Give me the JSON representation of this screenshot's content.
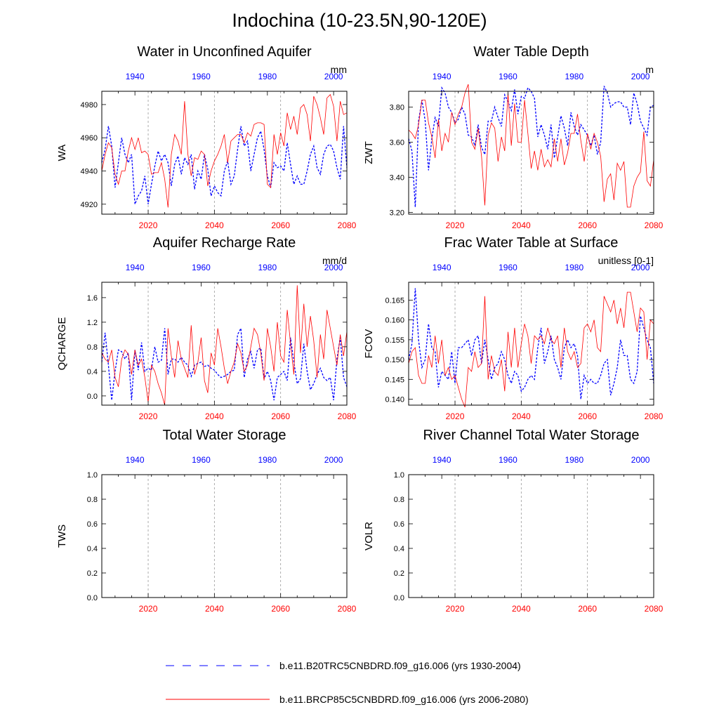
{
  "title": "Indochina (10-23.5N,90-120E)",
  "colors": {
    "historical": "#0000ff",
    "future": "#ff0000",
    "axis": "#000000",
    "grid": "#999999"
  },
  "legend": [
    {
      "label": "b.e11.B20TRC5CNBDRD.f09_g16.006 (yrs 1930-2004)",
      "color": "#0000ff",
      "style": "dashed"
    },
    {
      "label": "b.e11.BRCP85C5CNBDRD.f09_g16.006 (yrs 2006-2080)",
      "color": "#ff0000",
      "style": "solid"
    }
  ],
  "chart_data": [
    {
      "type": "line",
      "title": "Water in Unconfined Aquifer",
      "ylabel": "WA",
      "units": "mm",
      "ylim": [
        4914,
        4988
      ],
      "yticks": [
        4920,
        4940,
        4960,
        4980
      ],
      "bottom_xlim": [
        2006,
        2080
      ],
      "bottom_xticks": [
        2020,
        2040,
        2060,
        2080
      ],
      "top_xlim": [
        1930,
        2004
      ],
      "top_xticks": [
        1940,
        1960,
        1980,
        2000
      ],
      "grid_x": [
        2020,
        2040,
        2060
      ],
      "series": [
        {
          "name": "b.e11.B20TRC5CNBDRD.f09_g16.006 (yrs 1930-2004)",
          "axis": "top",
          "x_start": 1930,
          "values": [
            4945,
            4953,
            4967,
            4955,
            4930,
            4945,
            4960,
            4950,
            4945,
            4950,
            4920,
            4925,
            4928,
            4937,
            4920,
            4932,
            4943,
            4952,
            4946,
            4950,
            4945,
            4931,
            4944,
            4949,
            4938,
            4948,
            4944,
            4950,
            4929,
            4940,
            4935,
            4950,
            4941,
            4925,
            4931,
            4927,
            4925,
            4940,
            4946,
            4932,
            4937,
            4953,
            4967,
            4955,
            4958,
            4940,
            4950,
            4960,
            4964,
            4953,
            4937,
            4930,
            4945,
            4942,
            4943,
            4940,
            4957,
            4944,
            4932,
            4937,
            4932,
            4932,
            4940,
            4950,
            4955,
            4942,
            4938,
            4950,
            4955,
            4956,
            4952,
            4942,
            4935,
            4967,
            4942
          ]
        },
        {
          "name": "b.e11.BRCP85C5CNBDRD.f09_g16.006 (yrs 2006-2080)",
          "axis": "bottom",
          "x_start": 2006,
          "values": [
            4940,
            4950,
            4957,
            4954,
            4938,
            4932,
            4940,
            4940,
            4952,
            4960,
            4953,
            4960,
            4951,
            4952,
            4950,
            4938,
            4939,
            4939,
            4945,
            4935,
            4918,
            4950,
            4962,
            4958,
            4950,
            4982,
            4950,
            4937,
            4948,
            4947,
            4952,
            4950,
            4931,
            4940,
            4946,
            4950,
            4955,
            4962,
            4945,
            4958,
            4960,
            4962,
            4962,
            4957,
            4963,
            4961,
            4968,
            4969,
            4969,
            4968,
            4932,
            4930,
            4962,
            4950,
            4963,
            4955,
            4975,
            4965,
            4973,
            4962,
            4978,
            4980,
            4974,
            4958,
            4985,
            4980,
            4972,
            4962,
            4984,
            4986,
            4979,
            4958,
            4982,
            4974,
            4975
          ]
        }
      ]
    },
    {
      "type": "line",
      "title": "Water Table Depth",
      "ylabel": "ZWT",
      "units": "m",
      "ylim": [
        3.19,
        3.89
      ],
      "yticks": [
        3.2,
        3.4,
        3.6,
        3.8
      ],
      "ytick_labels": [
        "3.20",
        "3.40",
        "3.60",
        "3.80"
      ],
      "bottom_xlim": [
        2006,
        2080
      ],
      "bottom_xticks": [
        2020,
        2040,
        2060,
        2080
      ],
      "top_xlim": [
        1930,
        2004
      ],
      "top_xticks": [
        1940,
        1960,
        1980,
        2000
      ],
      "grid_x": [
        2020,
        2040,
        2060
      ],
      "series": [
        {
          "name": "b.e11.B20TRC5CNBDRD.f09_g16.006 (yrs 1930-2004)",
          "axis": "top",
          "x_start": 1930,
          "values": [
            3.62,
            3.55,
            3.23,
            3.72,
            3.84,
            3.72,
            3.44,
            3.62,
            3.74,
            3.69,
            3.91,
            3.88,
            3.8,
            3.77,
            3.71,
            3.73,
            3.8,
            3.76,
            3.64,
            3.63,
            3.58,
            3.7,
            3.57,
            3.53,
            3.72,
            3.72,
            3.8,
            3.74,
            3.69,
            3.87,
            3.83,
            3.78,
            3.9,
            3.76,
            3.86,
            3.85,
            3.91,
            3.89,
            3.85,
            3.63,
            3.7,
            3.64,
            3.56,
            3.7,
            3.51,
            3.63,
            3.75,
            3.68,
            3.58,
            3.77,
            3.69,
            3.64,
            3.7,
            3.67,
            3.64,
            3.58,
            3.64,
            3.53,
            3.6,
            3.92,
            3.88,
            3.8,
            3.82,
            3.83,
            3.83,
            3.8,
            3.8,
            3.7,
            3.88,
            3.82,
            3.72,
            3.68,
            3.64,
            3.8,
            3.81
          ]
        },
        {
          "name": "b.e11.BRCP85C5CNBDRD.f09_g16.006 (yrs 2006-2080)",
          "axis": "bottom",
          "x_start": 2006,
          "values": [
            3.67,
            3.65,
            3.62,
            3.7,
            3.84,
            3.84,
            3.71,
            3.63,
            3.51,
            3.73,
            3.55,
            3.65,
            3.6,
            3.77,
            3.7,
            3.76,
            3.8,
            3.88,
            3.93,
            3.6,
            3.56,
            3.68,
            3.52,
            3.24,
            3.64,
            3.71,
            3.68,
            3.49,
            3.63,
            3.55,
            3.88,
            3.58,
            3.82,
            3.6,
            3.6,
            3.84,
            3.65,
            3.45,
            3.55,
            3.44,
            3.56,
            3.46,
            3.5,
            3.46,
            3.62,
            3.49,
            3.62,
            3.47,
            3.54,
            3.65,
            3.65,
            3.76,
            3.61,
            3.49,
            3.65,
            3.56,
            3.65,
            3.6,
            3.52,
            3.26,
            3.39,
            3.42,
            3.27,
            3.48,
            3.44,
            3.49,
            3.23,
            3.23,
            3.35,
            3.4,
            3.43,
            3.66,
            3.38,
            3.35,
            3.5
          ]
        }
      ]
    },
    {
      "type": "line",
      "title": "Aquifer Recharge Rate",
      "ylabel": "QCHARGE",
      "units": "mm/d",
      "ylim": [
        -0.15,
        1.85
      ],
      "yticks": [
        0.0,
        0.4,
        0.8,
        1.2,
        1.6
      ],
      "ytick_labels": [
        "0.0",
        "0.4",
        "0.8",
        "1.2",
        "1.6"
      ],
      "bottom_xlim": [
        2006,
        2080
      ],
      "bottom_xticks": [
        2020,
        2040,
        2060,
        2080
      ],
      "top_xlim": [
        1930,
        2004
      ],
      "top_xticks": [
        1940,
        1960,
        1980,
        2000
      ],
      "grid_x": [
        2020,
        2040,
        2060
      ],
      "series": [
        {
          "name": "b.e11.B20TRC5CNBDRD.f09_g16.006 (yrs 1930-2004)",
          "axis": "top",
          "x_start": 1930,
          "values": [
            0.55,
            1.03,
            0.5,
            -0.07,
            0.4,
            0.75,
            0.72,
            0.6,
            0.7,
            -0.07,
            0.75,
            0.42,
            0.87,
            0.4,
            0.45,
            0.42,
            0.8,
            0.55,
            0.58,
            1.1,
            0.35,
            0.6,
            0.6,
            0.55,
            0.63,
            0.55,
            0.5,
            0.32,
            0.5,
            0.53,
            0.55,
            0.48,
            0.5,
            0.45,
            0.42,
            0.35,
            0.3,
            0.32,
            0.35,
            0.4,
            0.42,
            1.0,
            1.1,
            0.3,
            0.6,
            0.72,
            0.45,
            0.75,
            0.78,
            0.28,
            0.4,
            0.25,
            -0.07,
            0.3,
            0.35,
            0.4,
            0.25,
            0.95,
            0.55,
            0.2,
            0.28,
            0.85,
            0.4,
            0.1,
            0.2,
            0.35,
            0.45,
            0.3,
            0.25,
            0.3,
            -0.07,
            0.6,
            0.95,
            0.3,
            0.15
          ]
        },
        {
          "name": "b.e11.BRCP85C5CNBDRD.f09_g16.006 (yrs 2006-2080)",
          "axis": "bottom",
          "x_start": 2006,
          "values": [
            0.7,
            0.6,
            0.55,
            0.75,
            0.3,
            0.15,
            0.6,
            0.75,
            0.68,
            0.35,
            0.75,
            0.5,
            0.6,
            0.3,
            -0.1,
            0.5,
            0.4,
            0.2,
            0.05,
            -0.15,
            1.1,
            0.65,
            0.3,
            0.9,
            0.6,
            0.45,
            0.3,
            1.15,
            0.35,
            0.55,
            0.95,
            0.25,
            0.05,
            0.7,
            0.5,
            1.1,
            0.8,
            0.45,
            0.2,
            0.4,
            0.55,
            0.85,
            0.7,
            0.4,
            0.5,
            0.8,
            1.1,
            1.0,
            0.7,
            0.25,
            1.1,
            0.8,
            0.4,
            1.2,
            0.65,
            0.55,
            1.4,
            0.85,
            0.35,
            1.8,
            0.7,
            1.5,
            0.8,
            1.3,
            0.9,
            0.3,
            1.0,
            0.6,
            1.4,
            1.1,
            0.8,
            0.5,
            1.0,
            0.65,
            1.05
          ]
        }
      ]
    },
    {
      "type": "line",
      "title": "Frac Water Table at Surface",
      "ylabel": "FCOV",
      "units": "unitless [0-1]",
      "ylim": [
        0.1385,
        0.1695
      ],
      "yticks": [
        0.14,
        0.145,
        0.15,
        0.155,
        0.16,
        0.165
      ],
      "ytick_labels": [
        "0.140",
        "0.145",
        "0.150",
        "0.155",
        "0.160",
        "0.165"
      ],
      "bottom_xlim": [
        2006,
        2080
      ],
      "bottom_xticks": [
        2020,
        2040,
        2060,
        2080
      ],
      "top_xlim": [
        1930,
        2004
      ],
      "top_xticks": [
        1940,
        1960,
        1980,
        2000
      ],
      "grid_x": [
        2020,
        2040,
        2060
      ],
      "series": [
        {
          "name": "b.e11.B20TRC5CNBDRD.f09_g16.006 (yrs 1930-2004)",
          "axis": "top",
          "x_start": 1930,
          "values": [
            0.15,
            0.154,
            0.168,
            0.155,
            0.148,
            0.15,
            0.159,
            0.153,
            0.152,
            0.143,
            0.147,
            0.146,
            0.145,
            0.152,
            0.144,
            0.153,
            0.153,
            0.154,
            0.155,
            0.151,
            0.155,
            0.156,
            0.149,
            0.155,
            0.15,
            0.145,
            0.148,
            0.149,
            0.152,
            0.15,
            0.146,
            0.144,
            0.147,
            0.146,
            0.142,
            0.143,
            0.145,
            0.146,
            0.145,
            0.153,
            0.158,
            0.149,
            0.152,
            0.156,
            0.15,
            0.148,
            0.145,
            0.153,
            0.155,
            0.153,
            0.154,
            0.151,
            0.14,
            0.146,
            0.144,
            0.145,
            0.144,
            0.144,
            0.146,
            0.149,
            0.15,
            0.141,
            0.144,
            0.148,
            0.155,
            0.151,
            0.151,
            0.145,
            0.144,
            0.147,
            0.161,
            0.158,
            0.155,
            0.153,
            0.144
          ]
        },
        {
          "name": "b.e11.BRCP85C5CNBDRD.f09_g16.006 (yrs 2006-2080)",
          "axis": "bottom",
          "x_start": 2006,
          "values": [
            0.149,
            0.152,
            0.153,
            0.146,
            0.144,
            0.144,
            0.151,
            0.148,
            0.156,
            0.149,
            0.155,
            0.146,
            0.148,
            0.145,
            0.146,
            0.143,
            0.14,
            0.138,
            0.148,
            0.147,
            0.152,
            0.148,
            0.149,
            0.166,
            0.145,
            0.151,
            0.147,
            0.146,
            0.15,
            0.142,
            0.157,
            0.148,
            0.158,
            0.148,
            0.154,
            0.159,
            0.156,
            0.149,
            0.156,
            0.155,
            0.156,
            0.154,
            0.158,
            0.155,
            0.154,
            0.156,
            0.148,
            0.158,
            0.152,
            0.15,
            0.152,
            0.148,
            0.149,
            0.158,
            0.159,
            0.157,
            0.16,
            0.153,
            0.152,
            0.166,
            0.164,
            0.162,
            0.165,
            0.159,
            0.163,
            0.158,
            0.167,
            0.167,
            0.162,
            0.157,
            0.163,
            0.162,
            0.15,
            0.16,
            0.159
          ]
        }
      ]
    },
    {
      "type": "line",
      "title": "Total Water Storage",
      "ylabel": "TWS",
      "units": "",
      "ylim": [
        0,
        1
      ],
      "yticks": [
        0.0,
        0.2,
        0.4,
        0.6,
        0.8,
        1.0
      ],
      "ytick_labels": [
        "0.0",
        "0.2",
        "0.4",
        "0.6",
        "0.8",
        "1.0"
      ],
      "bottom_xlim": [
        2006,
        2080
      ],
      "bottom_xticks": [
        2020,
        2040,
        2060,
        2080
      ],
      "top_xlim": [
        1930,
        2004
      ],
      "top_xticks": [
        1940,
        1960,
        1980,
        2000
      ],
      "grid_x": [
        2020,
        2040,
        2060
      ],
      "series": []
    },
    {
      "type": "line",
      "title": "River Channel Total Water Storage",
      "ylabel": "VOLR",
      "units": "",
      "ylim": [
        0,
        1
      ],
      "yticks": [
        0.0,
        0.2,
        0.4,
        0.6,
        0.8,
        1.0
      ],
      "ytick_labels": [
        "0.0",
        "0.2",
        "0.4",
        "0.6",
        "0.8",
        "1.0"
      ],
      "bottom_xlim": [
        2006,
        2080
      ],
      "bottom_xticks": [
        2020,
        2040,
        2060,
        2080
      ],
      "top_xlim": [
        1930,
        2004
      ],
      "top_xticks": [
        1940,
        1960,
        1980,
        2000
      ],
      "grid_x": [
        2020,
        2040,
        2060
      ],
      "series": []
    }
  ]
}
